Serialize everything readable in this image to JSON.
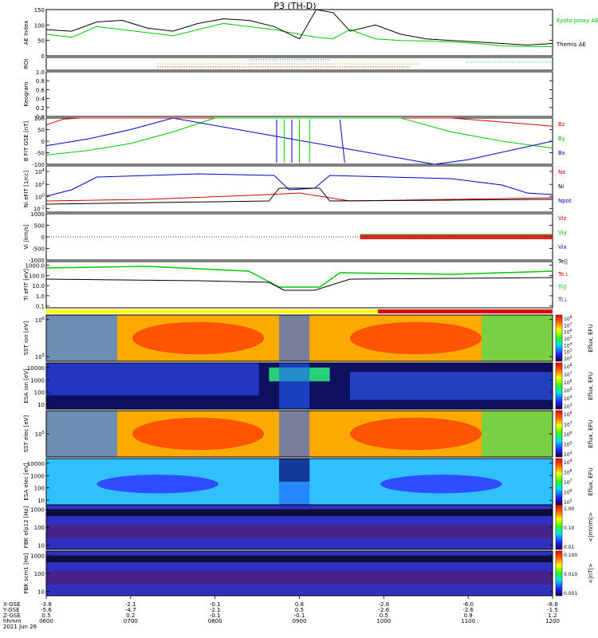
{
  "chart_data": {
    "type": "heatmap",
    "title": "P3 (TH-D)",
    "time_axis": {
      "tick_labels": [
        "0600",
        "0700",
        "0800",
        "0900",
        "1000",
        "1100",
        "1200"
      ],
      "row_labels": [
        "X-GSE",
        "Y-GSE",
        "Z-GSE",
        "hhmm",
        "2021 Jun 26"
      ],
      "x_gse": [
        "-3.8",
        "-2.1",
        "-0.1",
        "0.8",
        "-2.8",
        "-6.0",
        "-8.8"
      ],
      "y_gse": [
        "-5.6",
        "-4.7",
        "-2.1",
        "0.5",
        "-2.6",
        "-2.6",
        "-1.5"
      ],
      "z_gse": [
        "0.5",
        "0.2",
        "-0.1",
        "-0.1",
        "0.5",
        "0.9",
        "1.2"
      ]
    },
    "panels": [
      {
        "id": "ae",
        "ylabel": "AE Index",
        "yticks": [
          "150",
          "100",
          "50",
          "0"
        ],
        "ylim": [
          0,
          150
        ],
        "legend": [
          "Kyoto proxy AE",
          "Themis AE"
        ],
        "series": [
          {
            "name": "Kyoto proxy AE",
            "color": "#00cc00",
            "x": [
              0,
              0.3,
              0.6,
              0.9,
              1.2,
              1.5,
              1.8,
              2.1,
              2.4,
              2.7,
              3.0,
              3.2,
              3.4,
              3.6,
              3.9,
              4.2,
              4.5,
              4.8,
              5.1,
              5.4,
              5.7,
              6.0
            ],
            "values": [
              70,
              60,
              95,
              85,
              75,
              65,
              85,
              105,
              95,
              85,
              70,
              60,
              55,
              85,
              55,
              50,
              48,
              45,
              40,
              32,
              30,
              30
            ]
          },
          {
            "name": "Themis AE",
            "color": "#000000",
            "x": [
              0,
              0.3,
              0.6,
              0.9,
              1.2,
              1.5,
              1.8,
              2.1,
              2.4,
              2.7,
              3.0,
              3.2,
              3.4,
              3.6,
              3.9,
              4.2,
              4.5,
              4.8,
              5.1,
              5.4,
              5.7,
              6.0
            ],
            "values": [
              85,
              80,
              110,
              115,
              90,
              80,
              105,
              120,
              115,
              95,
              55,
              150,
              140,
              80,
              100,
              70,
              55,
              50,
              45,
              40,
              35,
              40
            ]
          }
        ]
      },
      {
        "id": "roi",
        "ylabel": "ROI"
      },
      {
        "id": "keogram",
        "ylabel": "Keogram",
        "yticks": [
          "1.0",
          "0.8",
          "0.6",
          "0.4",
          "0.2",
          "0.0"
        ],
        "ylim": [
          0,
          1
        ]
      },
      {
        "id": "bfit",
        "ylabel": "B FIT GSE [nT]",
        "yticks": [
          "100",
          "50",
          "0",
          "-50",
          "-100"
        ],
        "ylim": [
          -100,
          100
        ],
        "legend": [
          "Bz",
          "By",
          "Bx"
        ],
        "series": [
          {
            "name": "Bz",
            "color": "#dd0000",
            "x": [
              0,
              0.2,
              0.4,
              4.8,
              5.5,
              6.0
            ],
            "values": [
              70,
              95,
              100,
              100,
              80,
              65
            ]
          },
          {
            "name": "By",
            "color": "#00cc00",
            "x": [
              0,
              0.5,
              1.0,
              1.5,
              2.0,
              4.2,
              4.8,
              5.4,
              6.0
            ],
            "values": [
              -60,
              -40,
              -10,
              40,
              100,
              100,
              40,
              0,
              -30
            ]
          },
          {
            "name": "Bx",
            "color": "#0000cc",
            "x": [
              0,
              0.5,
              1.0,
              1.5,
              4.6,
              5.0,
              5.5,
              6.0
            ],
            "values": [
              -20,
              10,
              50,
              100,
              -100,
              -80,
              -40,
              0
            ]
          }
        ]
      },
      {
        "id": "ni",
        "ylabel": "Ni eFIT [1/cc]",
        "yticks": [
          "10^4",
          "10^2",
          "10^0",
          "10^-2"
        ],
        "legend": [
          "Ne",
          "Ni",
          "Npot"
        ]
      },
      {
        "id": "vi",
        "ylabel": "Vi [km/s]",
        "yticks": [
          "1000",
          "500",
          "0",
          "-500",
          "-1000"
        ],
        "ylim": [
          -1000,
          1000
        ],
        "legend": [
          "Vix",
          "Viy",
          "Viz"
        ]
      },
      {
        "id": "ti",
        "ylabel": "Ti eFIT [eV]",
        "yticks": [
          "1000.0",
          "100.0",
          "10.0",
          "1.0",
          "0.1"
        ],
        "legend": [
          "Te||",
          "Te⊥",
          "Ti||",
          "Ti⊥"
        ]
      },
      {
        "id": "sst_i",
        "ylabel": "SST ion [eV]",
        "yticks": [
          "10^6",
          "10^5"
        ],
        "cbar_ticks": [
          "10^8",
          "10^7",
          "10^6",
          "10^5",
          "10^4",
          "10^3",
          "10^2"
        ],
        "cbar_label": "Eflux, EFU"
      },
      {
        "id": "esa_i",
        "ylabel": "ESA ion [eV]",
        "yticks": [
          "10000",
          "1000",
          "100",
          "10"
        ],
        "cbar_ticks": [
          "10^8",
          "10^7",
          "10^6",
          "10^5",
          "10^4",
          "10^3"
        ],
        "cbar_label": "Eflux, EFU"
      },
      {
        "id": "sst_e",
        "ylabel": "SST elec [eV]",
        "yticks": [
          "10^5"
        ],
        "cbar_ticks": [
          "10^8",
          "10^7",
          "10^6",
          "10^5",
          "10^4"
        ],
        "cbar_label": "Eflux, EFU"
      },
      {
        "id": "esa_e",
        "ylabel": "ESA elec [eV]",
        "yticks": [
          "10000",
          "1000",
          "100",
          "10"
        ],
        "cbar_ticks": [
          "10^9",
          "10^8",
          "10^7",
          "10^6",
          "10^5"
        ],
        "cbar_label": "Eflux, EFU"
      },
      {
        "id": "fbk_e",
        "ylabel": "FBK efp12 [Hz]",
        "yticks": [
          "1000",
          "100",
          "10"
        ],
        "cbar_ticks": [
          "1.00",
          "0.10",
          "0.01"
        ],
        "cbar_label": "<|mV/m|>"
      },
      {
        "id": "fbk_b",
        "ylabel": "FBK scm1 [Hz]",
        "yticks": [
          "1000",
          "100",
          "10"
        ],
        "cbar_ticks": [
          "0.100",
          "0.010",
          "0.001"
        ],
        "cbar_label": "<|nT|>"
      }
    ]
  }
}
